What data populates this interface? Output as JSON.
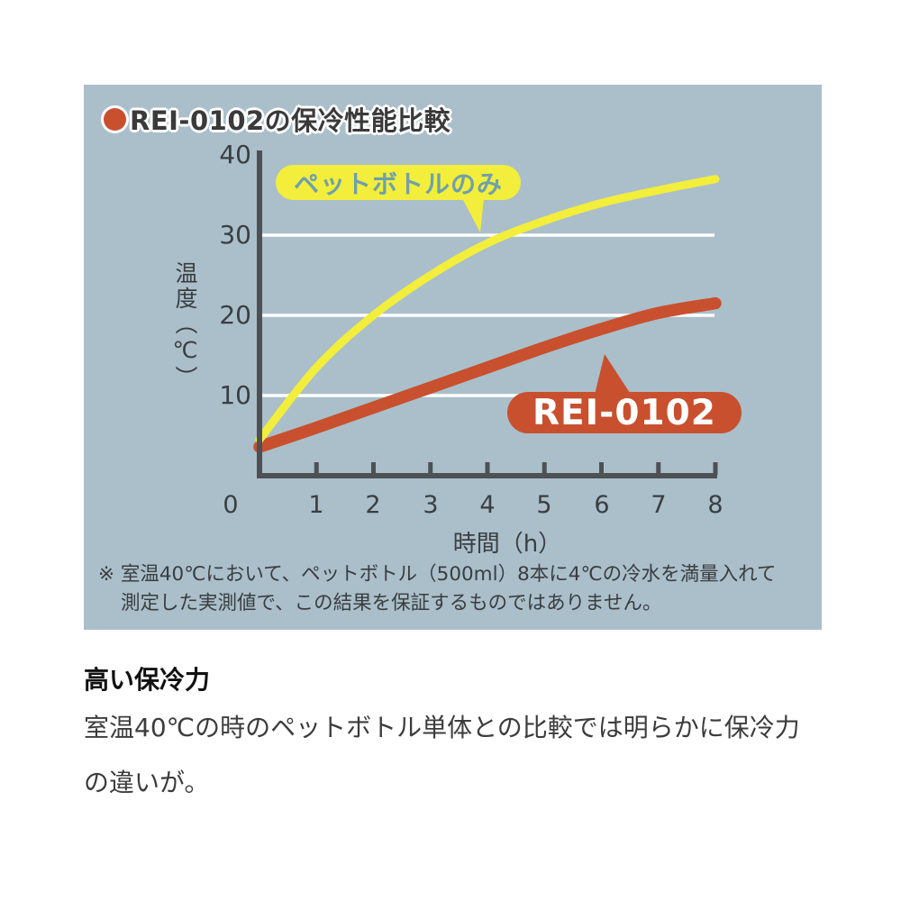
{
  "colors": {
    "panel_background": "#aabfca",
    "axis": "#4d5154",
    "gridline": "#ffffff",
    "title_text": "#3a3a3a",
    "bullet_red": "#c8502e",
    "pet_label_text": "#6fa0ac",
    "rei_label_text": "#ffffff"
  },
  "chart_data": {
    "type": "line",
    "title": "REI-0102の保冷性能比較",
    "xlabel": "時間（h）",
    "ylabel": "温度（℃）",
    "xlim": [
      0,
      8
    ],
    "ylim": [
      0,
      40
    ],
    "x": [
      0,
      1,
      2,
      3,
      4,
      5,
      6,
      7,
      8
    ],
    "x_tick_labels": [
      "0",
      "1",
      "2",
      "3",
      "4",
      "5",
      "6",
      "7",
      "8"
    ],
    "y_ticks": [
      40,
      30,
      20,
      10
    ],
    "y_tick_labels": [
      "40",
      "30",
      "20",
      "10"
    ],
    "y_gridlines": [
      10,
      20,
      30
    ],
    "grid": "horizontal-white",
    "legend_position": "labels-on-plot",
    "series": [
      {
        "name": "ペットボトルのみ",
        "color": "#f2ee3b",
        "stroke": 9,
        "values": [
          4.5,
          13.5,
          20,
          25,
          29,
          31.8,
          34,
          35.6,
          37
        ]
      },
      {
        "name": "REI-0102",
        "color": "#c8502e",
        "stroke": 13.5,
        "values": [
          3.6,
          6,
          8.5,
          11,
          13.5,
          16,
          18.3,
          20.3,
          21.5
        ]
      }
    ],
    "note_lines": [
      "※ 室温40℃において、ペットボトル（500ml）8本に4℃の冷水を満量入れて",
      "測定した実測値で、この結果を保証するものではありません。"
    ]
  },
  "below": {
    "heading": "高い保冷力",
    "paragraph_lines": [
      "室温40℃の時のペットボトル単体との比較では明らかに保冷力",
      "の違いが。"
    ]
  }
}
